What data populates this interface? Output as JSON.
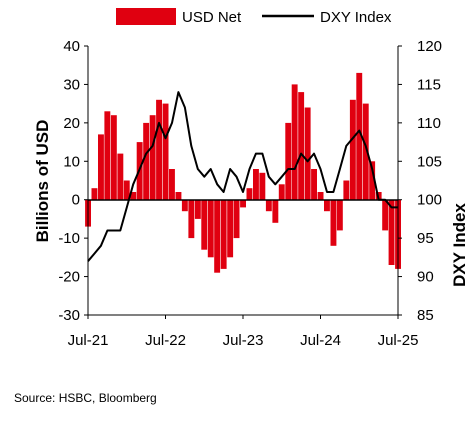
{
  "chart_data": {
    "type": "bar+line",
    "title": "",
    "xlabel": "",
    "ylabel": "Billions of USD",
    "y2label": "DXY Index",
    "ylim": [
      -30,
      40
    ],
    "y2lim": [
      85,
      120
    ],
    "yticks": [
      40,
      30,
      20,
      10,
      0,
      -10,
      -20,
      -30
    ],
    "y2ticks": [
      120,
      115,
      110,
      105,
      100,
      95,
      90,
      85
    ],
    "xticks": [
      "Jul-21",
      "Jul-22",
      "Jul-23",
      "Jul-24",
      "Jul-25"
    ],
    "xlim": [
      "2021-07",
      "2025-07"
    ],
    "legend_position": "top",
    "colors": {
      "bars": "#e00010",
      "line": "#000000",
      "axis": "#000000"
    },
    "series": [
      {
        "name": "USD Net",
        "kind": "bar",
        "axis": "left",
        "x": [
          "2021-07",
          "2021-08",
          "2021-09",
          "2021-10",
          "2021-11",
          "2021-12",
          "2022-01",
          "2022-02",
          "2022-03",
          "2022-04",
          "2022-05",
          "2022-06",
          "2022-07",
          "2022-08",
          "2022-09",
          "2022-10",
          "2022-11",
          "2022-12",
          "2023-01",
          "2023-02",
          "2023-03",
          "2023-04",
          "2023-05",
          "2023-06",
          "2023-07",
          "2023-08",
          "2023-09",
          "2023-10",
          "2023-11",
          "2023-12",
          "2024-01",
          "2024-02",
          "2024-03",
          "2024-04",
          "2024-05",
          "2024-06",
          "2024-07",
          "2024-08",
          "2024-09",
          "2024-10",
          "2024-11",
          "2024-12",
          "2025-01",
          "2025-02",
          "2025-03",
          "2025-04",
          "2025-05",
          "2025-06",
          "2025-07"
        ],
        "values": [
          -7,
          3,
          17,
          23,
          22,
          12,
          5,
          2,
          15,
          20,
          22,
          26,
          25,
          8,
          2,
          -3,
          -10,
          -5,
          -13,
          -15,
          -19,
          -18,
          -15,
          -10,
          -2,
          3,
          8,
          7,
          -3,
          -6,
          4,
          20,
          30,
          28,
          24,
          8,
          2,
          -3,
          -12,
          -8,
          5,
          26,
          33,
          25,
          10,
          2,
          -8,
          -17,
          -18
        ]
      },
      {
        "name": "DXY Index",
        "kind": "line",
        "axis": "right",
        "x": [
          "2021-07",
          "2021-08",
          "2021-09",
          "2021-10",
          "2021-11",
          "2021-12",
          "2022-01",
          "2022-02",
          "2022-03",
          "2022-04",
          "2022-05",
          "2022-06",
          "2022-07",
          "2022-08",
          "2022-09",
          "2022-10",
          "2022-11",
          "2022-12",
          "2023-01",
          "2023-02",
          "2023-03",
          "2023-04",
          "2023-05",
          "2023-06",
          "2023-07",
          "2023-08",
          "2023-09",
          "2023-10",
          "2023-11",
          "2023-12",
          "2024-01",
          "2024-02",
          "2024-03",
          "2024-04",
          "2024-05",
          "2024-06",
          "2024-07",
          "2024-08",
          "2024-09",
          "2024-10",
          "2024-11",
          "2024-12",
          "2025-01",
          "2025-02",
          "2025-03",
          "2025-04",
          "2025-05",
          "2025-06",
          "2025-07"
        ],
        "values": [
          92,
          93,
          94,
          96,
          96,
          96,
          99,
          102,
          104,
          106,
          107,
          110,
          108,
          110,
          114,
          112,
          107,
          104,
          103,
          104,
          102,
          101,
          104,
          103,
          101,
          104,
          106,
          106,
          103,
          102,
          103,
          104,
          104,
          106,
          105,
          106,
          104,
          101,
          101,
          104,
          107,
          108,
          109,
          107,
          104,
          100,
          100,
          99,
          99
        ]
      }
    ]
  },
  "source": "Source: HSBC, Bloomberg"
}
